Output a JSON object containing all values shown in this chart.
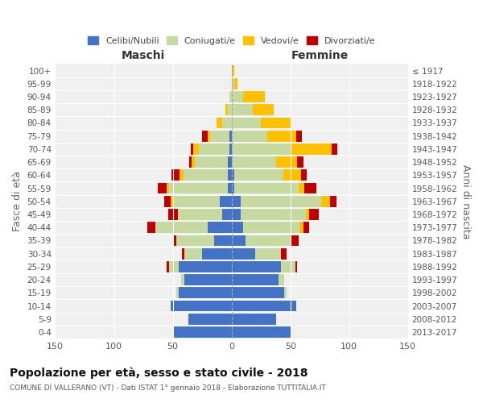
{
  "age_groups": [
    "0-4",
    "5-9",
    "10-14",
    "15-19",
    "20-24",
    "25-29",
    "30-34",
    "35-39",
    "40-44",
    "45-49",
    "50-54",
    "55-59",
    "60-64",
    "65-69",
    "70-74",
    "75-79",
    "80-84",
    "85-89",
    "90-94",
    "95-99",
    "100+"
  ],
  "birth_years": [
    "2013-2017",
    "2008-2012",
    "2003-2007",
    "1998-2002",
    "1993-1997",
    "1988-1992",
    "1983-1987",
    "1978-1982",
    "1973-1977",
    "1968-1972",
    "1963-1967",
    "1958-1962",
    "1953-1957",
    "1948-1952",
    "1943-1947",
    "1938-1942",
    "1933-1937",
    "1928-1932",
    "1923-1927",
    "1918-1922",
    "≤ 1917"
  ],
  "male_celibi": [
    50,
    37,
    52,
    45,
    40,
    45,
    25,
    15,
    20,
    8,
    10,
    3,
    3,
    3,
    2,
    2,
    0,
    0,
    0,
    0,
    0
  ],
  "male_coniugati": [
    0,
    0,
    0,
    2,
    3,
    8,
    15,
    32,
    45,
    38,
    40,
    50,
    38,
    28,
    26,
    16,
    8,
    3,
    2,
    0,
    0
  ],
  "male_vedovi": [
    0,
    0,
    0,
    0,
    0,
    0,
    0,
    0,
    0,
    0,
    2,
    2,
    3,
    3,
    5,
    2,
    5,
    2,
    0,
    0,
    0
  ],
  "male_divorziati": [
    0,
    0,
    0,
    0,
    0,
    2,
    2,
    3,
    7,
    8,
    5,
    8,
    7,
    2,
    2,
    5,
    0,
    0,
    0,
    0,
    0
  ],
  "female_celibi": [
    50,
    38,
    55,
    45,
    40,
    42,
    20,
    12,
    10,
    8,
    8,
    2,
    2,
    0,
    0,
    0,
    0,
    0,
    0,
    0,
    0
  ],
  "female_coniugati": [
    0,
    0,
    0,
    2,
    5,
    12,
    22,
    38,
    48,
    55,
    68,
    55,
    42,
    38,
    50,
    30,
    25,
    18,
    10,
    2,
    0
  ],
  "female_vedovi": [
    0,
    0,
    0,
    0,
    0,
    0,
    0,
    0,
    3,
    3,
    8,
    5,
    15,
    18,
    35,
    25,
    25,
    18,
    18,
    3,
    2
  ],
  "female_divorziati": [
    0,
    0,
    0,
    0,
    0,
    2,
    5,
    7,
    5,
    8,
    5,
    10,
    5,
    5,
    5,
    5,
    0,
    0,
    0,
    0,
    0
  ],
  "colors": {
    "celibi": "#4472C4",
    "coniugati": "#c5d9a0",
    "vedovi": "#ffc000",
    "divorziati": "#c00000"
  },
  "title": "Popolazione per età, sesso e stato civile - 2018",
  "subtitle": "COMUNE DI VALLERANO (VT) - Dati ISTAT 1° gennaio 2018 - Elaborazione TUTTITALIA.IT",
  "xlabel_left": "Maschi",
  "xlabel_right": "Femmine",
  "ylabel_left": "Fasce di età",
  "ylabel_right": "Anni di nascita",
  "legend_labels": [
    "Celibi/Nubili",
    "Coniugati/e",
    "Vedovi/e",
    "Divorziati/e"
  ],
  "xlim": 150,
  "bg_color": "#ffffff",
  "plot_bg_color": "#f0f0f0"
}
